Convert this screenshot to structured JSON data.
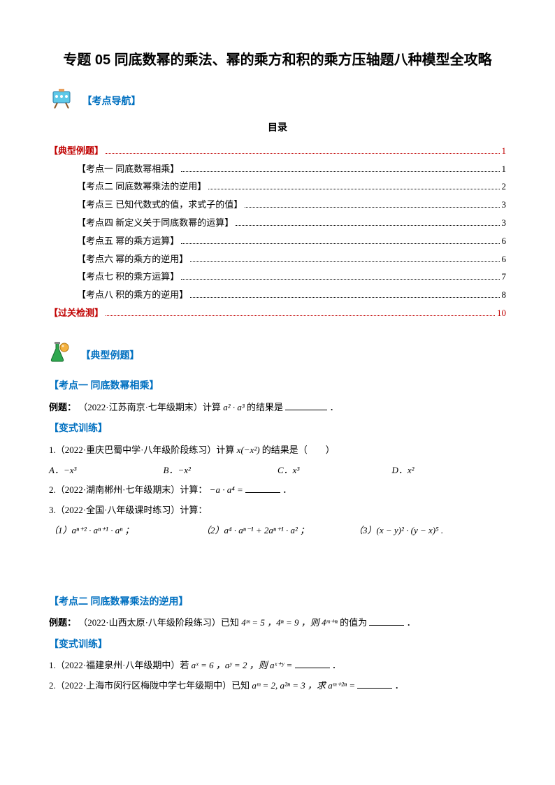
{
  "title": "专题 05 同底数幂的乘法、幂的乘方和积的乘方压轴题八种模型全攻略",
  "nav": {
    "label": "【考点导航】"
  },
  "mulu": "目录",
  "toc": [
    {
      "label": "【典型例题】",
      "page": "1",
      "red": true,
      "indent": false
    },
    {
      "label": "【考点一  同底数幂相乘】",
      "page": "1",
      "red": false,
      "indent": true
    },
    {
      "label": "【考点二  同底数幂乘法的逆用】",
      "page": "2",
      "red": false,
      "indent": true
    },
    {
      "label": "【考点三  已知代数式的值，求式子的值】",
      "page": "3",
      "red": false,
      "indent": true
    },
    {
      "label": "【考点四  新定义关于同底数幂的运算】",
      "page": "3",
      "red": false,
      "indent": true
    },
    {
      "label": "【考点五  幂的乘方运算】",
      "page": "6",
      "red": false,
      "indent": true
    },
    {
      "label": "【考点六  幂的乘方的逆用】",
      "page": "6",
      "red": false,
      "indent": true
    },
    {
      "label": "【考点七  积的乘方运算】",
      "page": "7",
      "red": false,
      "indent": true
    },
    {
      "label": "【考点八  积的乘方的逆用】",
      "page": "8",
      "red": false,
      "indent": true
    },
    {
      "label": "【过关检测】",
      "page": "10",
      "red": true,
      "indent": false
    }
  ],
  "examples_heading": "【典型例题】",
  "point1": {
    "heading": "【考点一  同底数幂相乘】",
    "example_label": "例题：",
    "example_src": "（2022·江苏南京·七年级期末）计算 ",
    "example_math": "a² · a³",
    "example_tail": " 的结果是",
    "variant_label": "【变式训练】",
    "q1_pre": "1.（2022·重庆巴蜀中学·八年级阶段练习）计算 ",
    "q1_math": "x(−x²)",
    "q1_tail": " 的结果是（　　）",
    "q1_opts": {
      "A": "A．−x³",
      "B": "B．−x²",
      "C": "C．x³",
      "D": "D．x²"
    },
    "q2_pre": "2.（2022·湖南郴州·七年级期末）计算：",
    "q2_math": "−a · a⁴ =",
    "q3_pre": "3.（2022·全国·八年级课时练习）计算：",
    "q3_sub1": "（1）aⁿ⁺² · aⁿ⁺¹ · aⁿ ；",
    "q3_sub2": "（2）a⁴ · aⁿ⁻¹ + 2aⁿ⁺¹ · a² ；",
    "q3_sub3": "（3）(x − y)² · (y − x)⁵ ."
  },
  "point2": {
    "heading": "【考点二  同底数幂乘法的逆用】",
    "example_label": "例题：",
    "example_src": "（2022·山西太原·八年级阶段练习）已知 ",
    "example_math": "4ᵐ = 5 ，4ⁿ = 9 ，则 4ᵐ⁺ⁿ",
    "example_tail": " 的值为",
    "variant_label": "【变式训练】",
    "q1_pre": "1.（2022·福建泉州·八年级期中）若 ",
    "q1_math": "aˣ = 6 ，aʸ = 2 ，则 aˣ⁺ʸ =",
    "q2_pre": "2.（2022·上海市闵行区梅陇中学七年级期中）已知 ",
    "q2_math": "aᵐ = 2, a²ⁿ = 3 ，求 aᵐ⁺²ⁿ ="
  }
}
